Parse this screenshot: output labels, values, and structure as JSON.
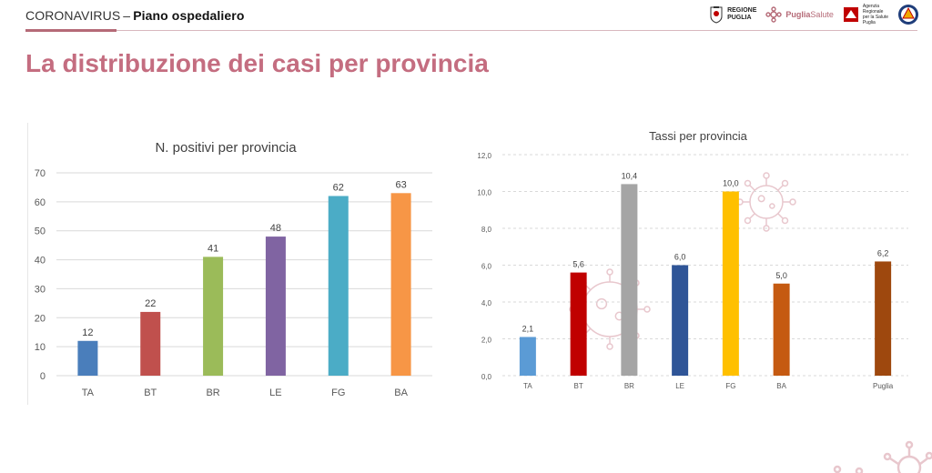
{
  "header": {
    "brand_prefix": "CORONAVIRUS",
    "brand_dash": "–",
    "brand_suffix": "Piano ospedaliero",
    "logo_regione_line1": "REGIONE",
    "logo_regione_line2": "PUGLIA",
    "logo_puglia_strong": "Puglia",
    "logo_puglia_light": "Salute",
    "logo_agenzia_line1": "Agenzia",
    "logo_agenzia_line2": "Regionale",
    "logo_agenzia_line3": "per la Salute",
    "logo_agenzia_line4": "Puglia"
  },
  "page_title": "La distribuzione dei casi per provincia",
  "colors": {
    "accent": "#c46d80",
    "grid": "#d9d9d9",
    "axis_text": "#595959",
    "virus_outline": "#e8c7cd"
  },
  "chart_data": [
    {
      "type": "bar",
      "title": "N. positivi per provincia",
      "categories": [
        "TA",
        "BT",
        "BR",
        "LE",
        "FG",
        "BA"
      ],
      "values": [
        12,
        22,
        41,
        48,
        62,
        63
      ],
      "value_labels": [
        "12",
        "22",
        "41",
        "48",
        "62",
        "63"
      ],
      "colors": [
        "#4a7ebb",
        "#c0504d",
        "#9bbb59",
        "#8064a2",
        "#4bacc6",
        "#f79646"
      ],
      "ylim": [
        0,
        70
      ],
      "yticks": [
        0,
        10,
        20,
        30,
        40,
        50,
        60,
        70
      ],
      "ytick_labels": [
        "0",
        "10",
        "20",
        "30",
        "40",
        "50",
        "60",
        "70"
      ],
      "grid": true,
      "xlabel": "",
      "ylabel": ""
    },
    {
      "type": "bar",
      "title": "Tassi per provincia",
      "categories": [
        "TA",
        "BT",
        "BR",
        "LE",
        "FG",
        "BA",
        "Puglia"
      ],
      "slots": [
        0,
        1,
        2,
        3,
        4,
        5,
        7
      ],
      "values": [
        2.1,
        5.6,
        10.4,
        6.0,
        10.0,
        5.0,
        6.2
      ],
      "value_labels": [
        "2,1",
        "5,6",
        "10,4",
        "6,0",
        "10,0",
        "5,0",
        "6,2"
      ],
      "colors": [
        "#5b9bd5",
        "#c00000",
        "#a5a5a5",
        "#2f5597",
        "#ffc000",
        "#c55a11",
        "#9e480e"
      ],
      "ylim": [
        0,
        12
      ],
      "yticks": [
        0,
        2,
        4,
        6,
        8,
        10,
        12
      ],
      "ytick_labels": [
        "0,0",
        "2,0",
        "4,0",
        "6,0",
        "8,0",
        "10,0",
        "12,0"
      ],
      "grid": true,
      "grid_style": "dashed",
      "xlabel": "",
      "ylabel": ""
    }
  ]
}
